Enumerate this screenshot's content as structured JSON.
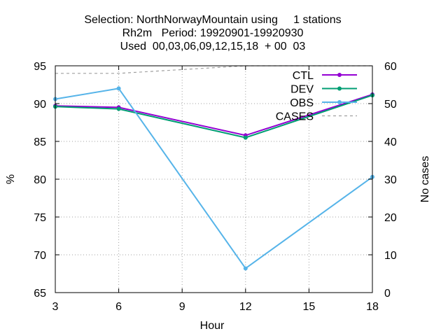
{
  "chart_data": {
    "type": "line",
    "title_lines": [
      "Selection: NorthNorwayMountain using     1 stations",
      "Rh2m   Period: 19920901-19920930",
      "Used  00,03,06,09,12,15,18  + 00  03"
    ],
    "xlabel": "Hour",
    "ylabel": "%",
    "y2label": "No cases",
    "xlim": [
      3,
      18
    ],
    "ylim": [
      65,
      95
    ],
    "y2lim": [
      0,
      60
    ],
    "xticks": [
      3,
      6,
      9,
      12,
      15,
      18
    ],
    "yticks": [
      65,
      70,
      75,
      80,
      85,
      90,
      95
    ],
    "y2ticks": [
      0,
      10,
      20,
      30,
      40,
      50,
      60
    ],
    "grid": true,
    "legend_position": "top-right",
    "x": [
      3,
      6,
      12,
      18
    ],
    "series": [
      {
        "name": "CTL",
        "axis": "left",
        "color": "#9400d3",
        "marker": true,
        "values": [
          89.7,
          89.5,
          85.8,
          91.2
        ]
      },
      {
        "name": "DEV",
        "axis": "left",
        "color": "#009e73",
        "marker": true,
        "values": [
          89.6,
          89.3,
          85.5,
          91.1
        ]
      },
      {
        "name": "OBS",
        "axis": "left",
        "color": "#56b4e9",
        "marker": true,
        "values": [
          90.6,
          92.0,
          68.2,
          80.3
        ]
      },
      {
        "name": "CASES",
        "axis": "right",
        "color": "#a0a0a0",
        "dashed": true,
        "marker": false,
        "values": [
          58,
          58,
          60,
          60
        ]
      }
    ]
  }
}
